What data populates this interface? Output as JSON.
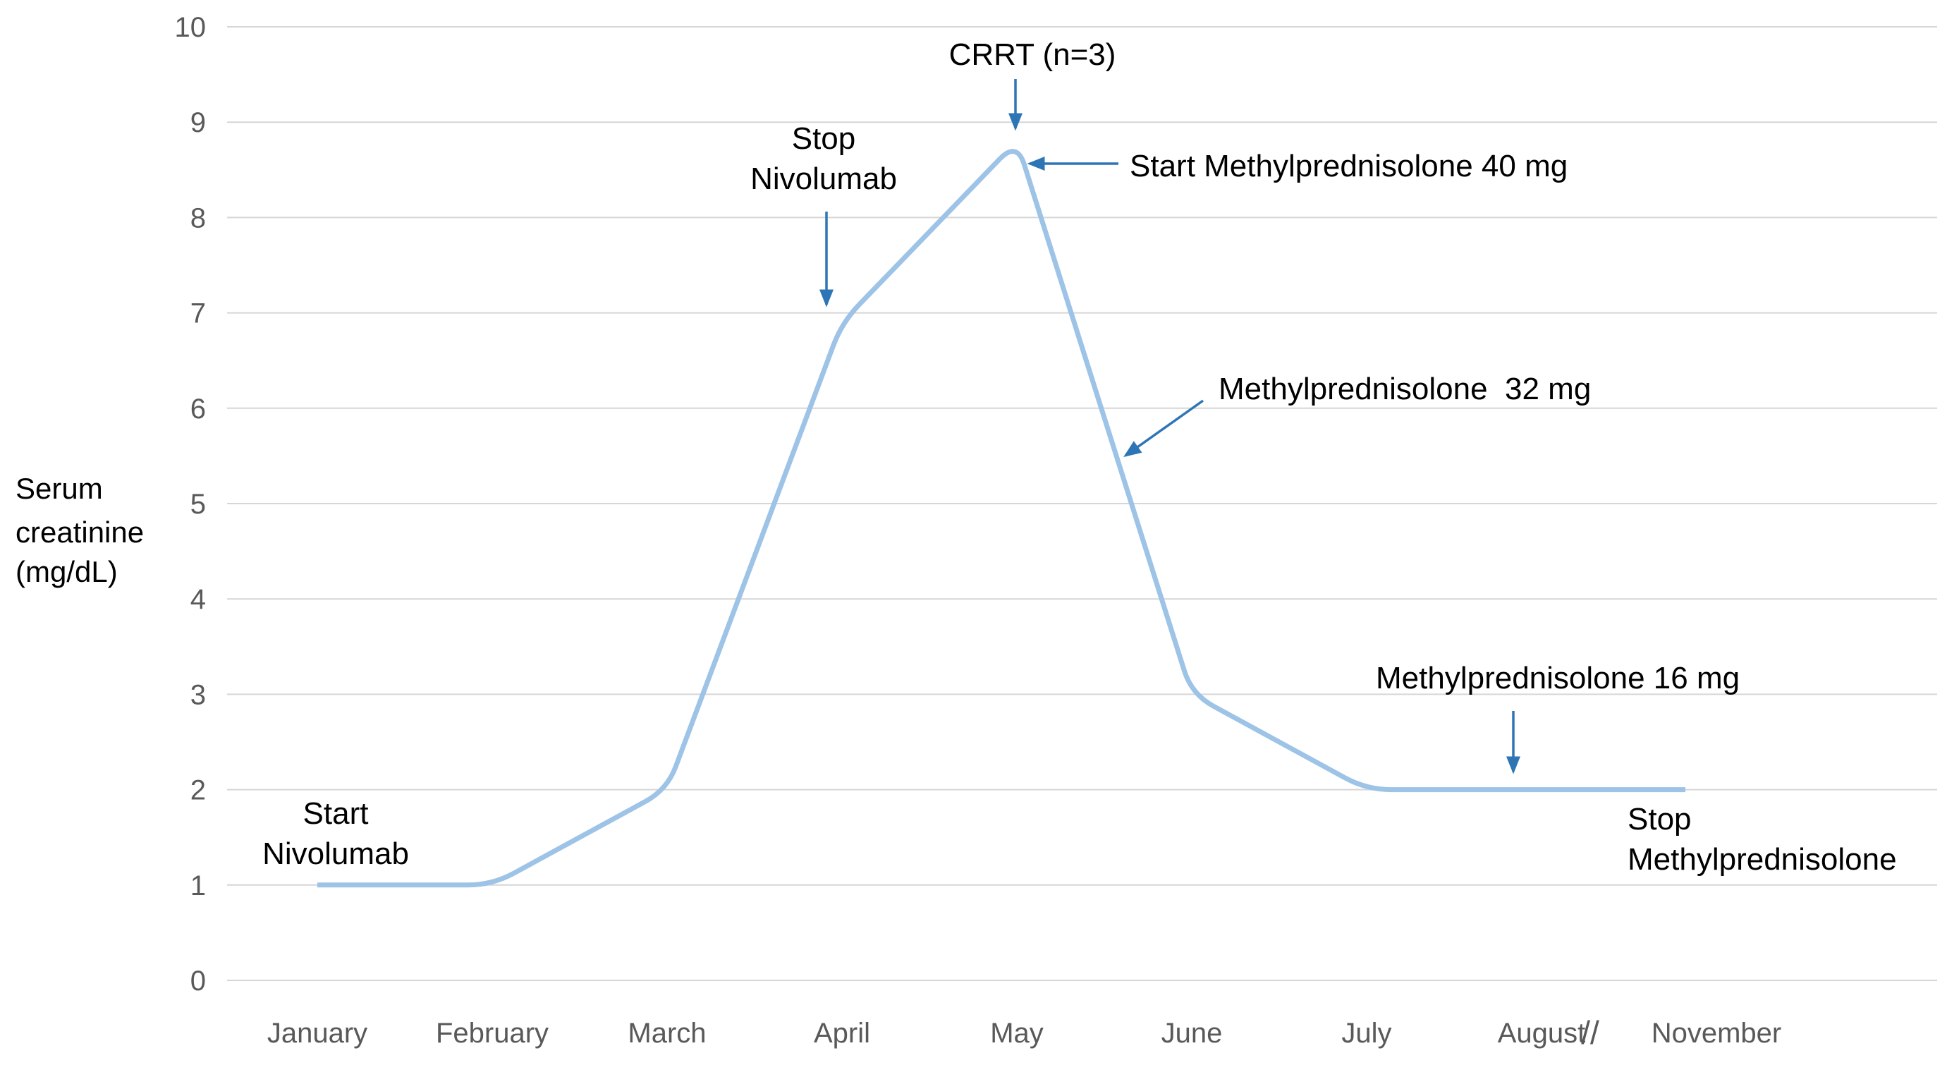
{
  "chart_data": {
    "type": "line",
    "title": "",
    "categories": [
      "January",
      "February",
      "March",
      "April",
      "May",
      "June",
      "July",
      "August",
      "November"
    ],
    "series": [
      {
        "name": "Serum creatinine",
        "values": [
          1,
          1,
          2,
          6.9,
          8.8,
          3,
          2,
          2,
          2
        ]
      }
    ],
    "xlabel": "",
    "ylabel": "Serum creatinine (mg/dL)",
    "ylabel_lines": [
      "Serum",
      "creatinine",
      "(mg/dL)"
    ],
    "ylim": [
      0,
      10
    ],
    "ytick_step": 1,
    "yticks": [
      0,
      1,
      2,
      3,
      4,
      5,
      6,
      7,
      8,
      9,
      10
    ],
    "grid": true,
    "legend": false,
    "axis_break": {
      "symbol": "//",
      "between": [
        "August",
        "November"
      ]
    },
    "line_color": "#9dc3e6",
    "arrow_color": "#2e75b6",
    "grid_color": "#d6d6d6",
    "tick_label_color": "#595959",
    "annotation_text_color": "#000000"
  },
  "annotations": {
    "start_nivolumab": {
      "line1": "Start",
      "line2": "Nivolumab",
      "points_to": "January, value 1"
    },
    "stop_nivolumab": {
      "line1": "Stop",
      "line2": "Nivolumab",
      "points_to": "April, value 6.9"
    },
    "crrt": {
      "text": "CRRT (n=3)",
      "points_to": "May peak, value 8.8"
    },
    "start_methylprednisolone_40": {
      "text": "Start Methylprednisolone 40 mg",
      "points_to": "May peak, value 8.8"
    },
    "methylprednisolone_32": {
      "text": "Methylprednisolone  32 mg",
      "points_to": "descent between May and June"
    },
    "methylprednisolone_16": {
      "text": "Methylprednisolone 16 mg",
      "points_to": "flat segment at value 2 near August"
    },
    "stop_methylprednisolone": {
      "line1": "Stop",
      "line2": "Methylprednisolone",
      "points_to": "November, value 2"
    }
  }
}
